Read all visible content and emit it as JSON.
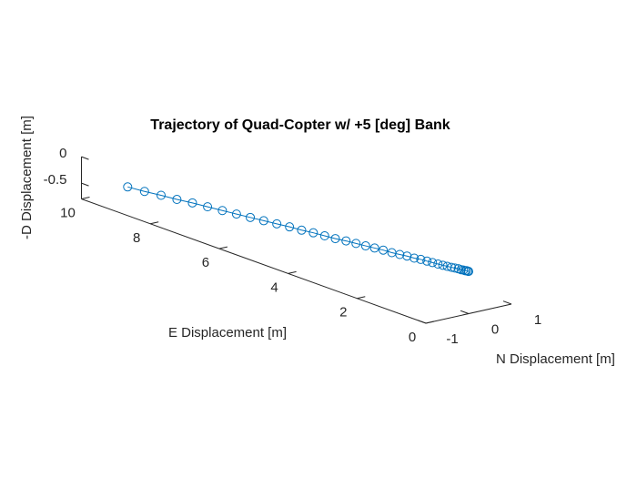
{
  "chart_data": {
    "type": "line3d",
    "title": "Trajectory of Quad-Copter w/ +5 [deg] Bank",
    "xlabel": "E Displacement [m]",
    "ylabel": "N Displacement [m]",
    "zlabel": "-D Displacement [m]",
    "xlim": [
      0,
      10
    ],
    "xticks": [
      0,
      2,
      4,
      6,
      8,
      10
    ],
    "ylim": [
      -1,
      1
    ],
    "yticks": [
      -1,
      0,
      1
    ],
    "zlim": [
      -0.8,
      0
    ],
    "zticks": [
      -0.5,
      0
    ],
    "series": [
      {
        "color": "#0072bd",
        "marker": "o",
        "x": [
          0,
          0.01,
          0.02,
          0.06,
          0.1,
          0.15,
          0.22,
          0.3,
          0.4,
          0.5,
          0.62,
          0.75,
          0.89,
          1.05,
          1.21,
          1.39,
          1.58,
          1.79,
          2.0,
          2.23,
          2.48,
          2.73,
          2.99,
          3.27,
          3.56,
          3.87,
          4.18,
          4.51,
          4.85,
          5.2,
          5.57,
          5.95,
          6.34,
          6.74,
          7.15,
          7.58,
          8.02,
          8.47,
          8.93,
          9.41,
          9.9
        ],
        "y": [
          0,
          0,
          0,
          0,
          0,
          0,
          0,
          0,
          0,
          0,
          0,
          0,
          0,
          0,
          0,
          0,
          0,
          0,
          0,
          0,
          0,
          0,
          0,
          0,
          0,
          0,
          0,
          0,
          0,
          0,
          0,
          0,
          0,
          0,
          0,
          0,
          0,
          0,
          0,
          0,
          0
        ],
        "z": [
          0,
          0,
          0,
          0,
          -0.01,
          -0.01,
          -0.02,
          -0.02,
          -0.03,
          -0.04,
          -0.05,
          -0.06,
          -0.07,
          -0.08,
          -0.09,
          -0.1,
          -0.12,
          -0.13,
          -0.15,
          -0.17,
          -0.18,
          -0.2,
          -0.22,
          -0.24,
          -0.26,
          -0.29,
          -0.31,
          -0.33,
          -0.36,
          -0.38,
          -0.41,
          -0.44,
          -0.47,
          -0.5,
          -0.53,
          -0.56,
          -0.59,
          -0.63,
          -0.66,
          -0.7,
          -0.73
        ]
      }
    ]
  }
}
